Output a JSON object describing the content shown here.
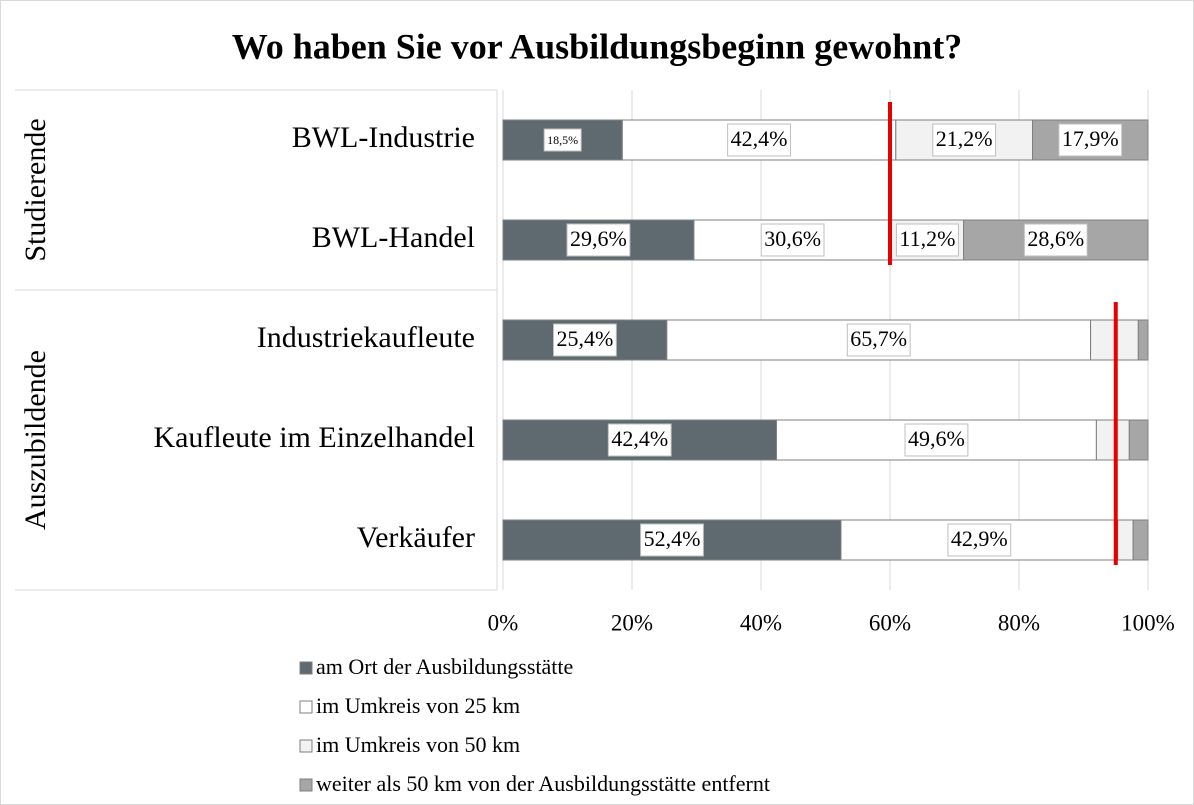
{
  "chart_data": {
    "type": "stacked_bar_horizontal",
    "title": "Wo haben Sie vor Ausbildungsbeginn gewohnt?",
    "categories": [
      "BWL-Industrie",
      "BWL-Handel",
      "Industriekaufleute",
      "Kaufleute im Einzelhandel",
      "Verkäufer"
    ],
    "group_labels": [
      "Studierende",
      "Auszubildende"
    ],
    "series": [
      {
        "name": "am Ort der Ausbildungsstätte",
        "color": "#5f6a70",
        "values": [
          18.5,
          29.6,
          25.4,
          42.4,
          52.4
        ],
        "value_labels": [
          "18,5%",
          "29,6%",
          "25,4%",
          "42,4%",
          "52,4%"
        ]
      },
      {
        "name": "im Umkreis von 25 km",
        "color": "#ffffff",
        "values": [
          42.4,
          30.6,
          65.7,
          49.6,
          42.9
        ],
        "value_labels": [
          "42,4%",
          "30,6%",
          "65,7%",
          "49,6%",
          "42,9%"
        ]
      },
      {
        "name": "im Umkreis von 50 km",
        "color": "#f2f2f2",
        "values": [
          21.2,
          11.2,
          7.4,
          5.1,
          2.4
        ],
        "value_labels": [
          "21,2%",
          "11,2%",
          null,
          null,
          null
        ]
      },
      {
        "name": "weiter als 50 km von der Ausbildungsstätte entfernt",
        "color": "#a6a6a6",
        "values": [
          17.9,
          28.6,
          1.5,
          2.9,
          2.3
        ],
        "value_labels": [
          "17,9%",
          "28,6%",
          null,
          null,
          null
        ]
      }
    ],
    "reference_lines": [
      {
        "value": 60,
        "color": "#e60000"
      },
      {
        "value": 95,
        "color": "#e60000"
      }
    ],
    "xlim": [
      0,
      100
    ],
    "xticks": [
      {
        "value": 0,
        "label": "0%"
      },
      {
        "value": 20,
        "label": "20%"
      },
      {
        "value": 40,
        "label": "40%"
      },
      {
        "value": 60,
        "label": "60%"
      },
      {
        "value": 80,
        "label": "80%"
      },
      {
        "value": 100,
        "label": "100%"
      }
    ],
    "grid": true
  }
}
